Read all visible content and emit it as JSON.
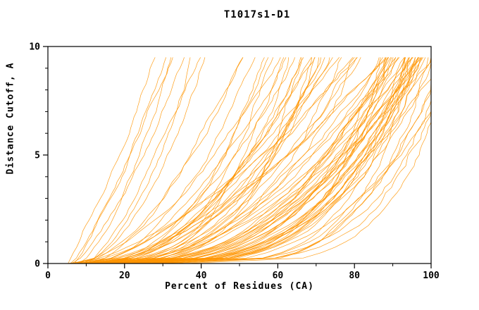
{
  "chart_data": {
    "type": "line",
    "title": "T1017s1-D1",
    "xlabel": "Percent of Residues (CA)",
    "ylabel": "Distance Cutoff, A",
    "xlim": [
      0,
      100
    ],
    "ylim": [
      0,
      10
    ],
    "x_major_ticks": [
      0,
      20,
      40,
      60,
      80,
      100
    ],
    "x_minor_step": 10,
    "y_major_ticks": [
      0,
      5,
      10
    ],
    "y_minor_step": 1,
    "y_data_max": 9.5,
    "line_color": "#ff9500",
    "frame_color": "#000000",
    "background": "#ffffff",
    "curves": [
      [
        5,
        27,
        1.1
      ],
      [
        6,
        30,
        1.3
      ],
      [
        7,
        32,
        1.2
      ],
      [
        8,
        34,
        1.5
      ],
      [
        6,
        36,
        1.4
      ],
      [
        9,
        38,
        1.6
      ],
      [
        10,
        40,
        1.3
      ],
      [
        8,
        42,
        1.8
      ],
      [
        7,
        50,
        1.8
      ],
      [
        9,
        55,
        2.0
      ],
      [
        11,
        58,
        2.2
      ],
      [
        6,
        60,
        1.7
      ],
      [
        13,
        62,
        2.5
      ],
      [
        8,
        64,
        2.0
      ],
      [
        10,
        66,
        2.3
      ],
      [
        12,
        68,
        1.9
      ],
      [
        14,
        70,
        2.6
      ],
      [
        7,
        72,
        2.1
      ],
      [
        9,
        74,
        2.4
      ],
      [
        15,
        75,
        2.8
      ],
      [
        11,
        52,
        1.6
      ],
      [
        13,
        57,
        2.2
      ],
      [
        16,
        63,
        2.7
      ],
      [
        18,
        69,
        3.0
      ],
      [
        6,
        71,
        1.8
      ],
      [
        8,
        73,
        2.3
      ],
      [
        10,
        75,
        2.0
      ],
      [
        12,
        59,
        2.5
      ],
      [
        14,
        65,
        2.1
      ],
      [
        16,
        67,
        2.9
      ],
      [
        18,
        73,
        2.4
      ],
      [
        9,
        61,
        1.9
      ],
      [
        11,
        69,
        2.6
      ],
      [
        5,
        80,
        2.0
      ],
      [
        7,
        82,
        2.4
      ],
      [
        9,
        84,
        2.8
      ],
      [
        11,
        86,
        3.2
      ],
      [
        13,
        88,
        2.2
      ],
      [
        15,
        90,
        2.6
      ],
      [
        17,
        92,
        3.0
      ],
      [
        19,
        94,
        3.4
      ],
      [
        21,
        96,
        2.3
      ],
      [
        23,
        98,
        2.7
      ],
      [
        25,
        101,
        3.1
      ],
      [
        6,
        81,
        1.6
      ],
      [
        8,
        83,
        2.0
      ],
      [
        10,
        85,
        2.4
      ],
      [
        12,
        87,
        2.8
      ],
      [
        14,
        89,
        3.2
      ],
      [
        16,
        91,
        2.1
      ],
      [
        18,
        93,
        2.5
      ],
      [
        20,
        95,
        2.9
      ],
      [
        22,
        97,
        3.3
      ],
      [
        24,
        99,
        2.2
      ],
      [
        26,
        102,
        2.6
      ],
      [
        7,
        85,
        3.6
      ],
      [
        9,
        88,
        4.0
      ],
      [
        11,
        91,
        3.8
      ],
      [
        13,
        94,
        4.2
      ],
      [
        15,
        97,
        3.5
      ],
      [
        17,
        104,
        4.5
      ],
      [
        28,
        100,
        3.0
      ],
      [
        30,
        103,
        3.5
      ],
      [
        32,
        100,
        4.0
      ],
      [
        35,
        106,
        4.5
      ],
      [
        8,
        90,
        1.8
      ],
      [
        10,
        92,
        2.2
      ],
      [
        12,
        94,
        2.6
      ],
      [
        14,
        96,
        3.0
      ],
      [
        16,
        98,
        3.4
      ],
      [
        18,
        101,
        2.0
      ],
      [
        20,
        90,
        2.4
      ],
      [
        22,
        92,
        2.8
      ],
      [
        24,
        94,
        3.2
      ],
      [
        26,
        96,
        2.1
      ],
      [
        28,
        98,
        2.5
      ],
      [
        30,
        105,
        2.9
      ],
      [
        6,
        88,
        5.0
      ],
      [
        8,
        92,
        4.8
      ],
      [
        10,
        96,
        4.4
      ],
      [
        12,
        108,
        5.2
      ],
      [
        14,
        86,
        1.5
      ],
      [
        16,
        90,
        1.9
      ],
      [
        18,
        96,
        2.3
      ],
      [
        20,
        102,
        2.7
      ],
      [
        25,
        95,
        5.5
      ],
      [
        27,
        97,
        4.6
      ],
      [
        29,
        99,
        3.9
      ]
    ]
  }
}
